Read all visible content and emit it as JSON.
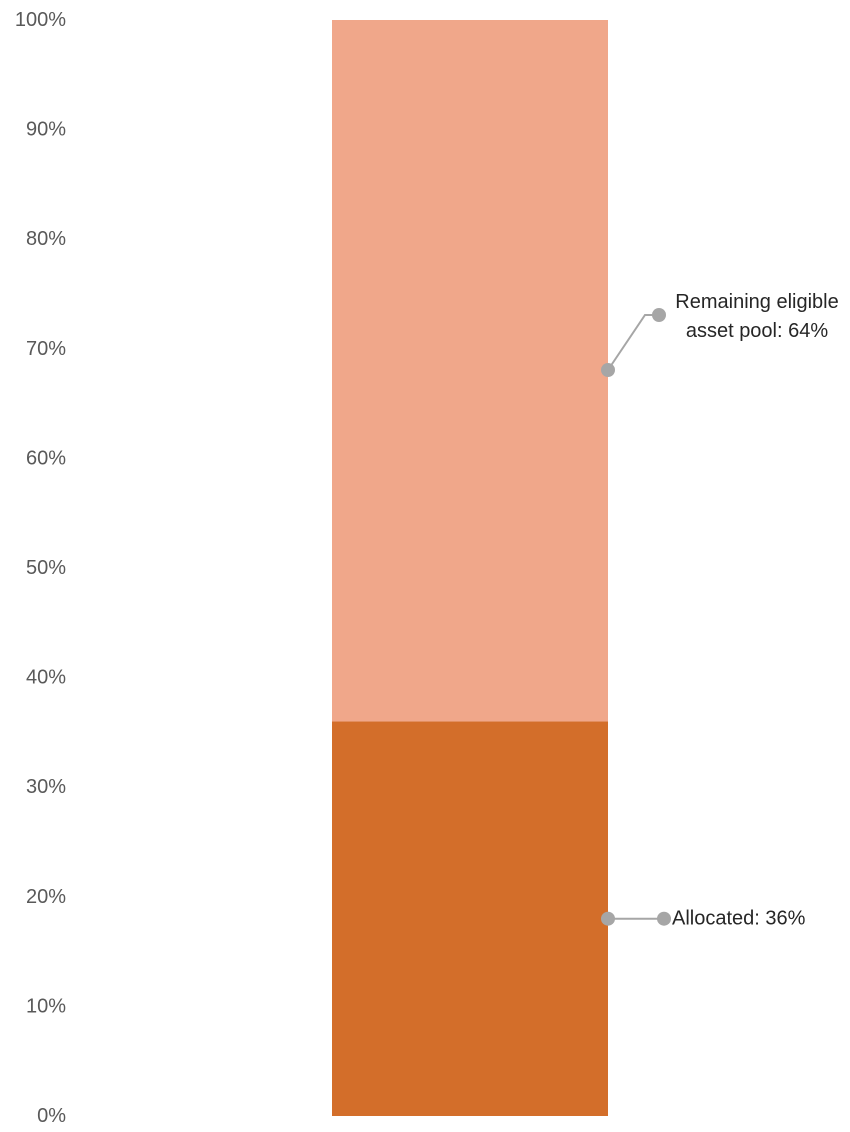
{
  "colors": {
    "allocated": "#D36E2A",
    "remaining": "#F0A78A",
    "gridline": "#E07A30",
    "callout": "#A6A6A6",
    "tick_text": "#595959",
    "label_text": "#262626"
  },
  "chart_data": {
    "type": "bar",
    "stacked": true,
    "title": "",
    "xlabel": "",
    "ylabel": "",
    "ylim": [
      0,
      100
    ],
    "y_ticks": [
      "0%",
      "10%",
      "20%",
      "30%",
      "40%",
      "50%",
      "60%",
      "70%",
      "80%",
      "90%",
      "100%"
    ],
    "grid": true,
    "legend": "none",
    "series": [
      {
        "name": "Allocated",
        "values": [
          36
        ],
        "label": "Allocated: 36%"
      },
      {
        "name": "Remaining eligible asset pool",
        "values": [
          64
        ],
        "label_lines": [
          "Remaining eligible",
          "asset pool: 64%"
        ]
      }
    ]
  }
}
